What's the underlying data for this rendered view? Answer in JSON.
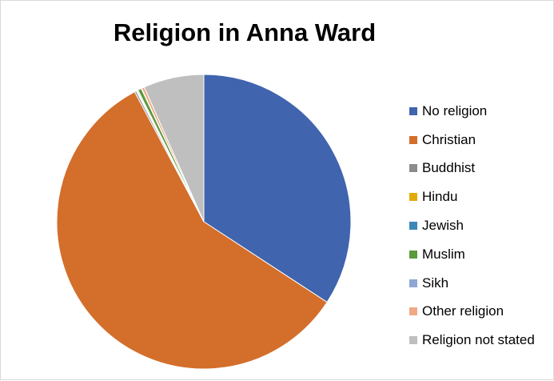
{
  "chart_data": {
    "type": "pie",
    "title": "Religion in Anna Ward",
    "categories": [
      "No religion",
      "Christian",
      "Buddhist",
      "Hindu",
      "Jewish",
      "Muslim",
      "Sikh",
      "Other religion",
      "Religion not stated"
    ],
    "values": [
      34.2,
      58.0,
      0.2,
      0.1,
      0.1,
      0.4,
      0.05,
      0.3,
      6.65
    ],
    "colors": [
      "#4064ad",
      "#d46e2b",
      "#8c8c8c",
      "#e1ac06",
      "#3c86b8",
      "#5c9a3d",
      "#90a6d4",
      "#f0a985",
      "#bfbfbf"
    ],
    "legend_position": "right",
    "start_angle": "top",
    "direction": "clockwise"
  }
}
